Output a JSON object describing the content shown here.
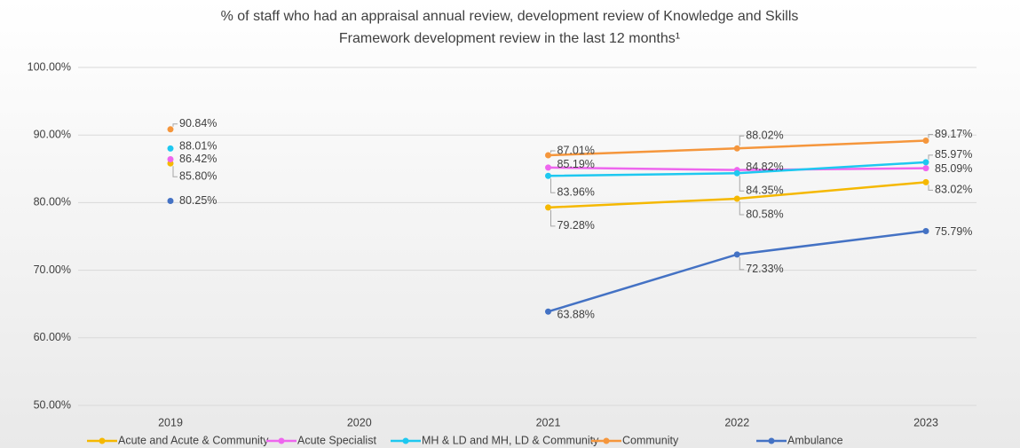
{
  "chart_data": {
    "type": "line",
    "title_lines": [
      "% of staff who had an appraisal annual review, development review of Knowledge and Skills",
      "Framework development review in the last 12 months¹"
    ],
    "categories": [
      "2019",
      "2020",
      "2021",
      "2022",
      "2023"
    ],
    "series": [
      {
        "name": "Acute and Acute & Community",
        "color": "#f5b800",
        "values": [
          85.8,
          null,
          79.28,
          80.58,
          83.02
        ],
        "value_labels": [
          "85.80%",
          null,
          "79.28%",
          "80.58%",
          "83.02%"
        ]
      },
      {
        "name": "Acute Specialist",
        "color": "#ee66ee",
        "values": [
          86.42,
          null,
          85.19,
          84.82,
          85.09
        ],
        "value_labels": [
          "86.42%",
          null,
          "85.19%",
          "84.82%",
          "85.09%"
        ]
      },
      {
        "name": "MH & LD and MH, LD & Community",
        "color": "#1ec8f0",
        "values": [
          88.01,
          null,
          83.96,
          84.35,
          85.97
        ],
        "value_labels": [
          "88.01%",
          null,
          "83.96%",
          "84.35%",
          "85.97%"
        ]
      },
      {
        "name": "Community",
        "color": "#f5963c",
        "values": [
          90.84,
          null,
          87.01,
          88.02,
          89.17
        ],
        "value_labels": [
          "90.84%",
          null,
          "87.01%",
          "88.02%",
          "89.17%"
        ]
      },
      {
        "name": "Ambulance",
        "color": "#4472c4",
        "values": [
          80.25,
          null,
          63.88,
          72.33,
          75.79
        ],
        "value_labels": [
          "80.25%",
          null,
          "63.88%",
          "72.33%",
          "75.79%"
        ]
      }
    ],
    "ylim": [
      50,
      100
    ],
    "yticks": [
      {
        "value": 50,
        "label": "50.00%"
      },
      {
        "value": 60,
        "label": "60.00%"
      },
      {
        "value": 70,
        "label": "70.00%"
      },
      {
        "value": 80,
        "label": "80.00%"
      },
      {
        "value": 90,
        "label": "90.00%"
      },
      {
        "value": 100,
        "label": "100.00%"
      }
    ],
    "grid": true,
    "legend": "bottom"
  }
}
